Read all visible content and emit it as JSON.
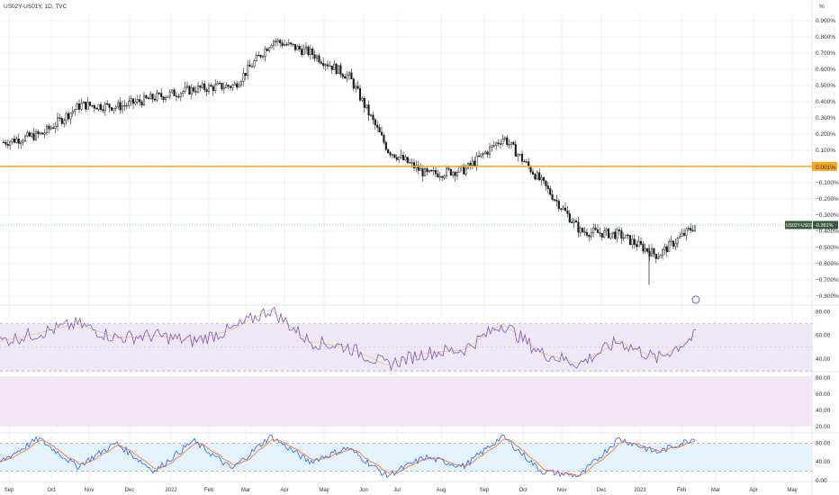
{
  "header": {
    "symbol_label": "US02Y-US01Y, 1D, TVC"
  },
  "price_axis": {
    "unit": "%",
    "ticks": [
      "0.900%",
      "0.800%",
      "0.700%",
      "0.600%",
      "0.500%",
      "0.400%",
      "0.300%",
      "0.200%",
      "0.100%",
      "0.000%",
      "−0.100%",
      "−0.200%",
      "−0.300%",
      "−0.400%",
      "−0.500%",
      "−0.600%",
      "−0.700%",
      "−0.800%"
    ],
    "hline_label": "0.001%",
    "last_label": "US02Y-US01Y",
    "last_value": "-0.361%"
  },
  "rsi_axis": {
    "ticks": [
      "80.00",
      "60.00",
      "40.00"
    ]
  },
  "empty_pane_axis": {
    "ticks": [
      "80.00",
      "60.00",
      "40.00",
      "20.00"
    ]
  },
  "stoch_axis": {
    "ticks": [
      "80.00",
      "40.00",
      "0.00"
    ]
  },
  "time_axis": {
    "ticks": [
      "Sep",
      "Oct",
      "Nov",
      "Dec",
      "2022",
      "Feb",
      "Mar",
      "Apr",
      "May",
      "Jun",
      "Jul",
      "Aug",
      "Sep",
      "Oct",
      "Nov",
      "Dec",
      "2023",
      "Feb",
      "Mar",
      "Apr",
      "May"
    ]
  },
  "colors": {
    "up": "#26a69a",
    "down": "#000000",
    "hline": "#f5a623",
    "rsi_line": "#7e57c2",
    "rsi_band": "#ede7f6",
    "stoch_k": "#2962ff",
    "stoch_d": "#ff6d00",
    "stoch_band": "#e3f2fd"
  },
  "chart_data": [
    {
      "type": "candlestick",
      "name": "US02Y-US01Y",
      "unit": "%",
      "ylim": [
        -0.85,
        0.95
      ],
      "horizontal_line": 0.001,
      "last_value": -0.361,
      "x_range": [
        "2021-09",
        "2023-05"
      ],
      "series": [
        {
          "x": "Sep 2021",
          "y": 0.15
        },
        {
          "x": "Oct 2021",
          "y": 0.2
        },
        {
          "x": "Nov 2021",
          "y": 0.38
        },
        {
          "x": "Dec 2021",
          "y": 0.37
        },
        {
          "x": "Jan 2022",
          "y": 0.43
        },
        {
          "x": "Feb 2022",
          "y": 0.48
        },
        {
          "x": "Mar 2022",
          "y": 0.5
        },
        {
          "x": "Apr 2022",
          "y": 0.78
        },
        {
          "x": "May 2022",
          "y": 0.7
        },
        {
          "x": "Jun 2022",
          "y": 0.55
        },
        {
          "x": "Jul 2022",
          "y": 0.1
        },
        {
          "x": "Aug 2022",
          "y": -0.05
        },
        {
          "x": "Sep 2022",
          "y": -0.02
        },
        {
          "x": "Oct 2022",
          "y": 0.18
        },
        {
          "x": "Nov 2022",
          "y": -0.1
        },
        {
          "x": "Dec 2022",
          "y": -0.4
        },
        {
          "x": "Jan 2023",
          "y": -0.42
        },
        {
          "x": "Feb 2023",
          "y": -0.55
        },
        {
          "x": "Feb 2023 end",
          "y": -0.36
        }
      ],
      "grid": true
    },
    {
      "type": "line",
      "name": "RSI",
      "ylim": [
        30,
        85
      ],
      "band": [
        30,
        70
      ],
      "series": [
        {
          "x": "Sep 2021",
          "y": 55
        },
        {
          "x": "Oct 2021",
          "y": 62
        },
        {
          "x": "Nov 2021",
          "y": 70
        },
        {
          "x": "Dec 2021",
          "y": 58
        },
        {
          "x": "Jan 2022",
          "y": 60
        },
        {
          "x": "Feb 2022",
          "y": 55
        },
        {
          "x": "Mar 2022",
          "y": 65
        },
        {
          "x": "Apr 2022",
          "y": 82
        },
        {
          "x": "May 2022",
          "y": 55
        },
        {
          "x": "Jun 2022",
          "y": 50
        },
        {
          "x": "Jul 2022",
          "y": 35
        },
        {
          "x": "Aug 2022",
          "y": 45
        },
        {
          "x": "Sep 2022",
          "y": 48
        },
        {
          "x": "Oct 2022",
          "y": 70
        },
        {
          "x": "Nov 2022",
          "y": 45
        },
        {
          "x": "Dec 2022",
          "y": 36
        },
        {
          "x": "Jan 2023",
          "y": 55
        },
        {
          "x": "Feb 2023",
          "y": 40
        },
        {
          "x": "Feb 2023 end",
          "y": 60
        }
      ]
    },
    {
      "type": "line",
      "name": "Stochastic",
      "ylim": [
        0,
        100
      ],
      "band": [
        20,
        80
      ],
      "series": [
        {
          "x": "Sep 2021",
          "y": 40
        },
        {
          "x": "Oct 2021",
          "y": 90
        },
        {
          "x": "Nov 2021",
          "y": 30
        },
        {
          "x": "Dec 2021",
          "y": 80
        },
        {
          "x": "Jan 2022",
          "y": 20
        },
        {
          "x": "Feb 2022",
          "y": 85
        },
        {
          "x": "Mar 2022",
          "y": 25
        },
        {
          "x": "Apr 2022",
          "y": 95
        },
        {
          "x": "May 2022",
          "y": 40
        },
        {
          "x": "Jun 2022",
          "y": 70
        },
        {
          "x": "Jul 2022",
          "y": 10
        },
        {
          "x": "Aug 2022",
          "y": 50
        },
        {
          "x": "Sep 2022",
          "y": 30
        },
        {
          "x": "Oct 2022",
          "y": 95
        },
        {
          "x": "Nov 2022",
          "y": 20
        },
        {
          "x": "Dec 2022",
          "y": 10
        },
        {
          "x": "Jan 2023",
          "y": 90
        },
        {
          "x": "Feb 2023",
          "y": 60
        },
        {
          "x": "Feb 2023 end",
          "y": 92
        }
      ]
    }
  ]
}
